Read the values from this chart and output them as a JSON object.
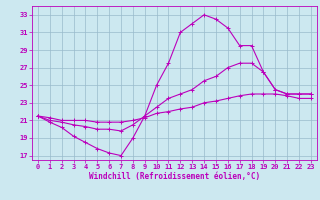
{
  "xlabel": "Windchill (Refroidissement éolien,°C)",
  "bg_color": "#cce8f0",
  "line_color": "#bb00bb",
  "grid_color": "#99bbcc",
  "xlim": [
    -0.5,
    23.5
  ],
  "ylim": [
    16.5,
    34
  ],
  "xticks": [
    0,
    1,
    2,
    3,
    4,
    5,
    6,
    7,
    8,
    9,
    10,
    11,
    12,
    13,
    14,
    15,
    16,
    17,
    18,
    19,
    20,
    21,
    22,
    23
  ],
  "yticks": [
    17,
    19,
    21,
    23,
    25,
    27,
    29,
    31,
    33
  ],
  "line1_x": [
    0,
    1,
    2,
    3,
    4,
    5,
    6,
    7,
    8,
    9,
    10,
    11,
    12,
    13,
    14,
    15,
    16,
    17,
    18,
    19,
    20,
    21,
    22,
    23
  ],
  "line1_y": [
    21.5,
    20.8,
    20.2,
    19.2,
    18.5,
    17.8,
    17.3,
    17.0,
    19.0,
    21.5,
    25.0,
    27.5,
    31.0,
    32.0,
    33.0,
    32.5,
    31.5,
    29.5,
    29.5,
    26.5,
    24.5,
    24.0,
    24.0,
    24.0
  ],
  "line2_x": [
    0,
    1,
    2,
    3,
    4,
    5,
    6,
    7,
    8,
    9,
    10,
    11,
    12,
    13,
    14,
    15,
    16,
    17,
    18,
    19,
    20,
    21,
    22,
    23
  ],
  "line2_y": [
    21.5,
    21.0,
    20.8,
    20.5,
    20.3,
    20.0,
    20.0,
    19.8,
    20.5,
    21.5,
    22.5,
    23.5,
    24.0,
    24.5,
    25.5,
    26.0,
    27.0,
    27.5,
    27.5,
    26.5,
    24.5,
    24.0,
    24.0,
    24.0
  ],
  "line3_x": [
    0,
    1,
    2,
    3,
    4,
    5,
    6,
    7,
    8,
    9,
    10,
    11,
    12,
    13,
    14,
    15,
    16,
    17,
    18,
    19,
    20,
    21,
    22,
    23
  ],
  "line3_y": [
    21.5,
    21.3,
    21.0,
    21.0,
    21.0,
    20.8,
    20.8,
    20.8,
    21.0,
    21.3,
    21.8,
    22.0,
    22.3,
    22.5,
    23.0,
    23.2,
    23.5,
    23.8,
    24.0,
    24.0,
    24.0,
    23.8,
    23.5,
    23.5
  ]
}
